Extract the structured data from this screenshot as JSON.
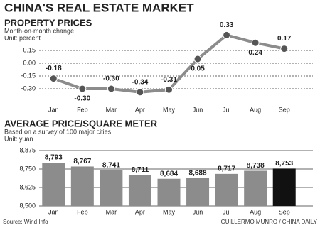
{
  "title": "CHINA'S REAL ESTATE MARKET",
  "chart_data": [
    {
      "type": "line",
      "title": "PROPERTY PRICES",
      "subtitle": "Month-on-month change",
      "unit": "Unit: percent",
      "categories": [
        "Jan",
        "Feb",
        "Mar",
        "Apr",
        "May",
        "Jun",
        "Jul",
        "Aug",
        "Sep"
      ],
      "values": [
        -0.18,
        -0.3,
        -0.3,
        -0.34,
        -0.31,
        0.05,
        0.33,
        0.24,
        0.17
      ],
      "value_labels": [
        "-0.18",
        "-0.30",
        "-0.30",
        "-0.34",
        "-0.31",
        "0.05",
        "0.33",
        "0.24",
        "0.17"
      ],
      "color": "#8c8c8c",
      "ylim": [
        -0.4,
        0.45
      ],
      "yticks": [
        0.15,
        {
          "value": 0,
          "label": "0.00"
        },
        -0.15,
        {
          "value": -0.3,
          "label": "-0.30"
        }
      ],
      "grid": true
    },
    {
      "type": "bar",
      "title": "AVERAGE PRICE/SQUARE METER",
      "subtitle": "Based on a survey of 100 major cities",
      "unit": "Unit: yuan",
      "categories": [
        "Jan",
        "Feb",
        "Mar",
        "Apr",
        "May",
        "Jun",
        "Jul",
        "Aug",
        "Sep"
      ],
      "values": [
        8793,
        8767,
        8741,
        8711,
        8684,
        8688,
        8717,
        8738,
        8753
      ],
      "value_labels": [
        "8,793",
        "8,767",
        "8,741",
        "8,711",
        "8,684",
        "8,688",
        "8,717",
        "8,738",
        "8,753"
      ],
      "colors": [
        "#8c8c8c",
        "#8c8c8c",
        "#8c8c8c",
        "#8c8c8c",
        "#8c8c8c",
        "#8c8c8c",
        "#8c8c8c",
        "#8c8c8c",
        "#111111"
      ],
      "ylim": [
        8500,
        8875
      ],
      "yticks": [
        {
          "value": 8500,
          "label": "8,500"
        },
        {
          "value": 8625,
          "label": "8,625"
        },
        {
          "value": 8750,
          "label": "8,750"
        },
        {
          "value": 8875,
          "label": "8,875"
        }
      ],
      "grid": true
    }
  ],
  "source": "Source: Wind Info",
  "credit": "GUILLERMO MUNRO / CHINA DAILY"
}
